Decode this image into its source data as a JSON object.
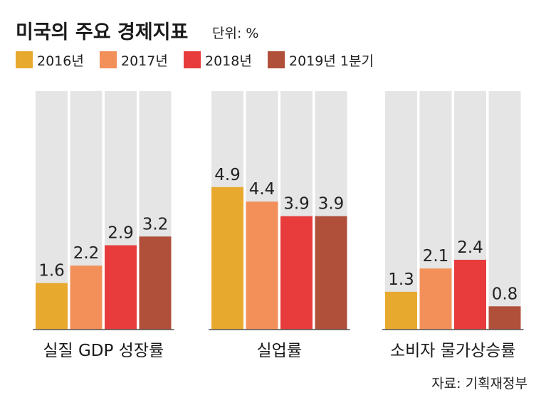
{
  "header": {
    "title": "미국의 주요 경제지표",
    "unit": "단위: %"
  },
  "source": "자료: 기획재정부",
  "colors": {
    "background_bar": "#e5e5e5",
    "axis": "#555555"
  },
  "chart_data": {
    "type": "bar",
    "title": "미국의 주요 경제지표",
    "ylabel": "",
    "ylim": [
      0,
      8.2
    ],
    "legend_position": "top",
    "categories": [
      "실질 GDP 성장률",
      "실업률",
      "소비자 물가상승률"
    ],
    "series": [
      {
        "name": "2016년",
        "color": "#e8a92f",
        "values": [
          1.6,
          4.9,
          1.3
        ],
        "labels": [
          "1.6",
          "4.9",
          "1.3"
        ]
      },
      {
        "name": "2017년",
        "color": "#f3905a",
        "values": [
          2.2,
          4.4,
          2.1
        ],
        "labels": [
          "2.2",
          "4.4",
          "2.1"
        ]
      },
      {
        "name": "2018년",
        "color": "#e83c3c",
        "values": [
          2.9,
          3.9,
          2.4
        ],
        "labels": [
          "2.9",
          "3.9",
          "2.4"
        ]
      },
      {
        "name": "2019년 1분기",
        "color": "#b04f3a",
        "values": [
          3.2,
          3.9,
          0.8
        ],
        "labels": [
          "3.2",
          "3.9",
          "0.8"
        ]
      }
    ]
  }
}
